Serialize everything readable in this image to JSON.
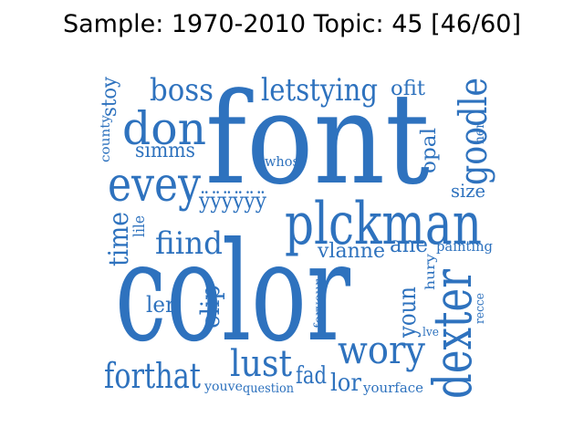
{
  "title": "Sample: 1970-2010 Topic: 45 [46/60]",
  "color": "#2e72be",
  "words": [
    {
      "text": "color"
    },
    {
      "text": "font"
    },
    {
      "text": "plckman"
    },
    {
      "text": "dexter"
    },
    {
      "text": "don"
    },
    {
      "text": "evey"
    },
    {
      "text": "wory"
    },
    {
      "text": "lust"
    },
    {
      "text": "forthat"
    },
    {
      "text": "goodle"
    },
    {
      "text": "boss"
    },
    {
      "text": "letstying"
    },
    {
      "text": "fiind"
    },
    {
      "text": "time"
    },
    {
      "text": "ÿÿÿÿÿÿ"
    },
    {
      "text": "clip"
    },
    {
      "text": "youn"
    },
    {
      "text": "lor"
    },
    {
      "text": "fad"
    },
    {
      "text": "ler"
    },
    {
      "text": "vlanne"
    },
    {
      "text": "ane"
    },
    {
      "text": "stoy"
    },
    {
      "text": "simms"
    },
    {
      "text": "ofit"
    },
    {
      "text": "opal"
    },
    {
      "text": "size"
    },
    {
      "text": "whos"
    },
    {
      "text": "lile"
    },
    {
      "text": "county"
    },
    {
      "text": "hen"
    },
    {
      "text": "painting"
    },
    {
      "text": "hury"
    },
    {
      "text": "foryour"
    },
    {
      "text": "recce"
    },
    {
      "text": "lve"
    },
    {
      "text": "youve"
    },
    {
      "text": "question"
    },
    {
      "text": "yourface"
    }
  ]
}
